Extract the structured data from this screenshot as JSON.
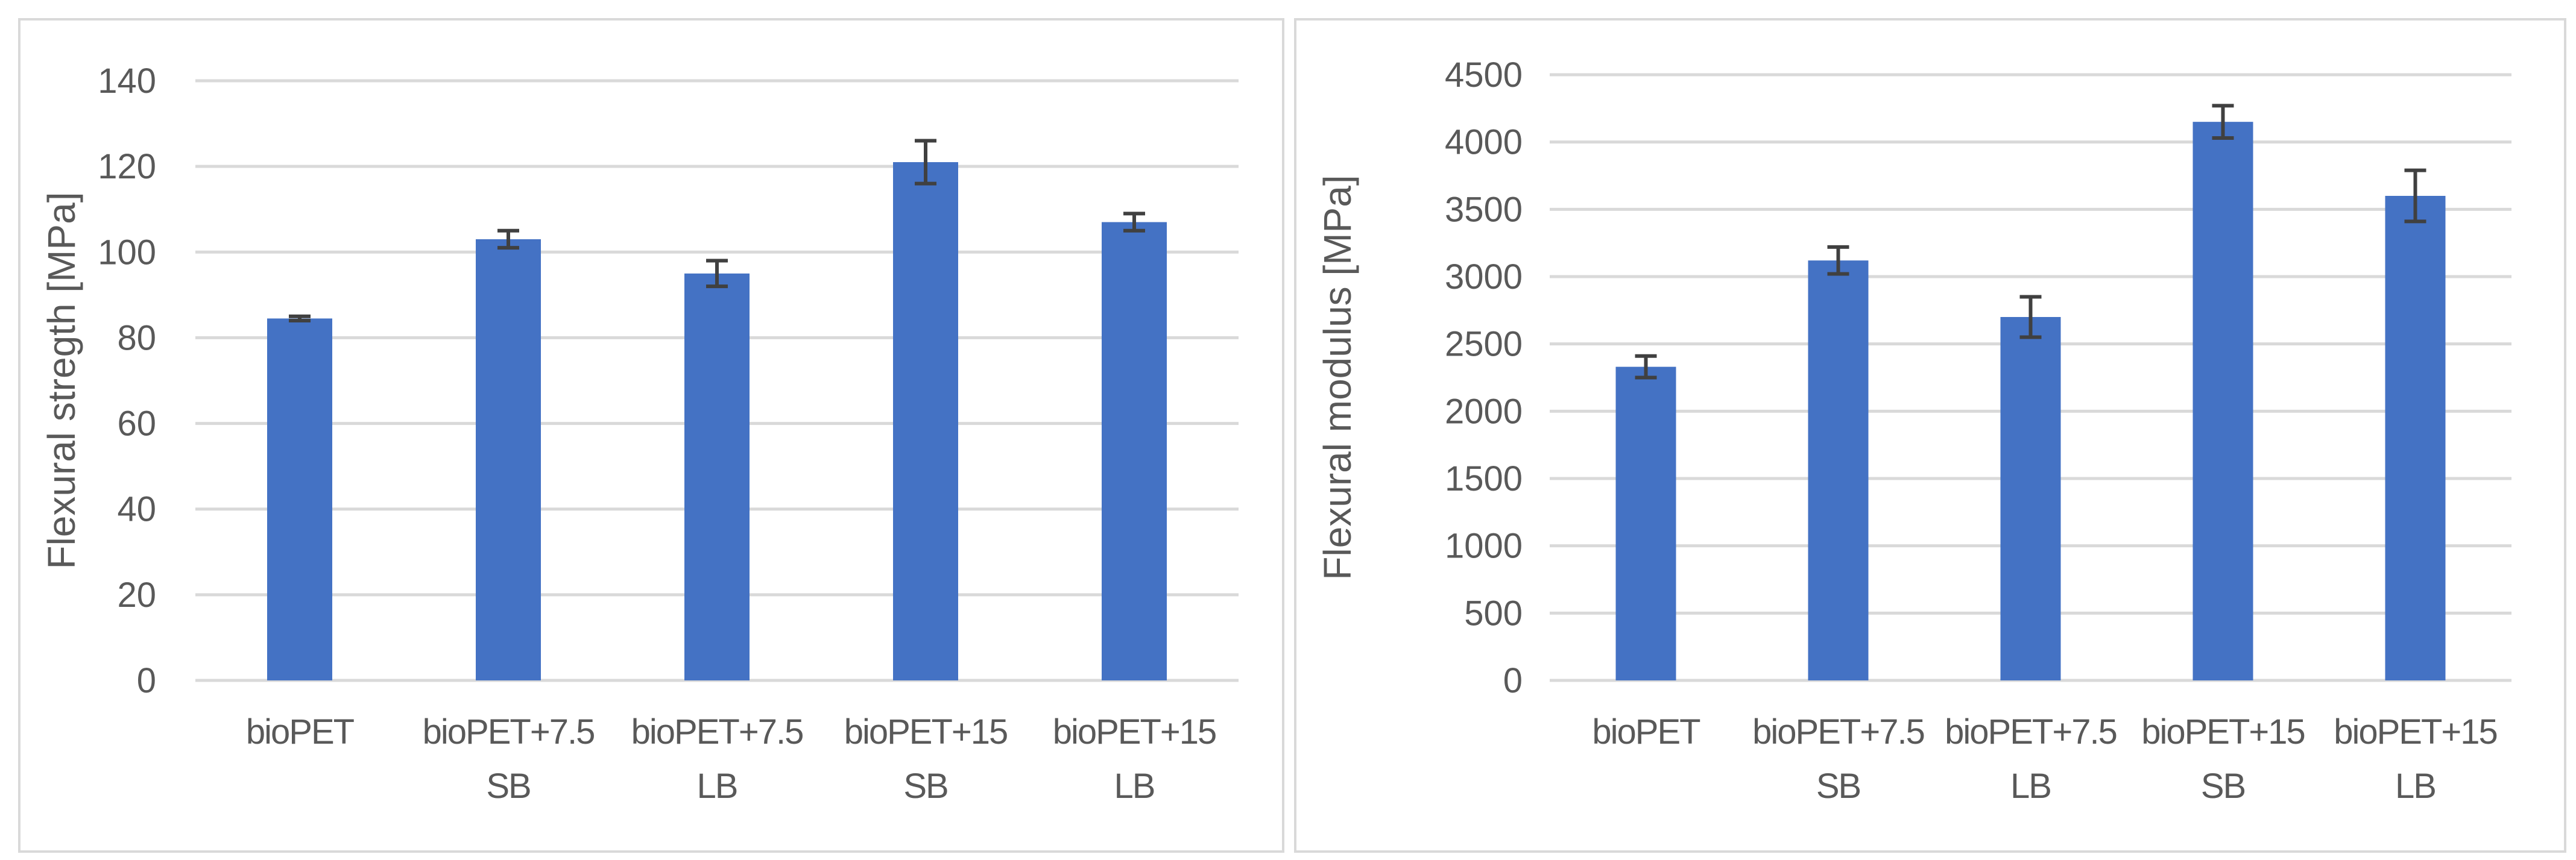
{
  "chart_data": [
    {
      "type": "bar",
      "title": "",
      "xlabel": "",
      "ylabel": "Flexural stregth [MPa]",
      "categories": [
        "bioPET",
        "bioPET+7.5 SB",
        "bioPET+7.5 LB",
        "bioPET+15 SB",
        "bioPET+15 LB"
      ],
      "category_lines": [
        [
          "bioPET"
        ],
        [
          "bioPET+7.5",
          "SB"
        ],
        [
          "bioPET+7.5",
          "LB"
        ],
        [
          "bioPET+15",
          "SB"
        ],
        [
          "bioPET+15",
          "LB"
        ]
      ],
      "values": [
        84.5,
        103,
        95,
        121,
        107
      ],
      "errors": [
        0.5,
        2,
        3,
        5,
        2
      ],
      "ylim": [
        0,
        140
      ],
      "yticks": [
        0,
        20,
        40,
        60,
        80,
        100,
        120,
        140
      ],
      "grid": true,
      "bar_color": "#4472C4",
      "error_color": "#404040"
    },
    {
      "type": "bar",
      "title": "",
      "xlabel": "",
      "ylabel": "Flexural modulus [MPa]",
      "categories": [
        "bioPET",
        "bioPET+7.5 SB",
        "bioPET+7.5 LB",
        "bioPET+15 SB",
        "bioPET+15 LB"
      ],
      "category_lines": [
        [
          "bioPET"
        ],
        [
          "bioPET+7.5",
          "SB"
        ],
        [
          "bioPET+7.5",
          "LB"
        ],
        [
          "bioPET+15",
          "SB"
        ],
        [
          "bioPET+15",
          "LB"
        ]
      ],
      "values": [
        2330,
        3120,
        2700,
        4150,
        3600
      ],
      "errors": [
        80,
        100,
        150,
        120,
        190
      ],
      "ylim": [
        0,
        4500
      ],
      "yticks": [
        0,
        500,
        1000,
        1500,
        2000,
        2500,
        3000,
        3500,
        4000,
        4500
      ],
      "grid": true,
      "bar_color": "#4472C4",
      "error_color": "#404040"
    }
  ]
}
